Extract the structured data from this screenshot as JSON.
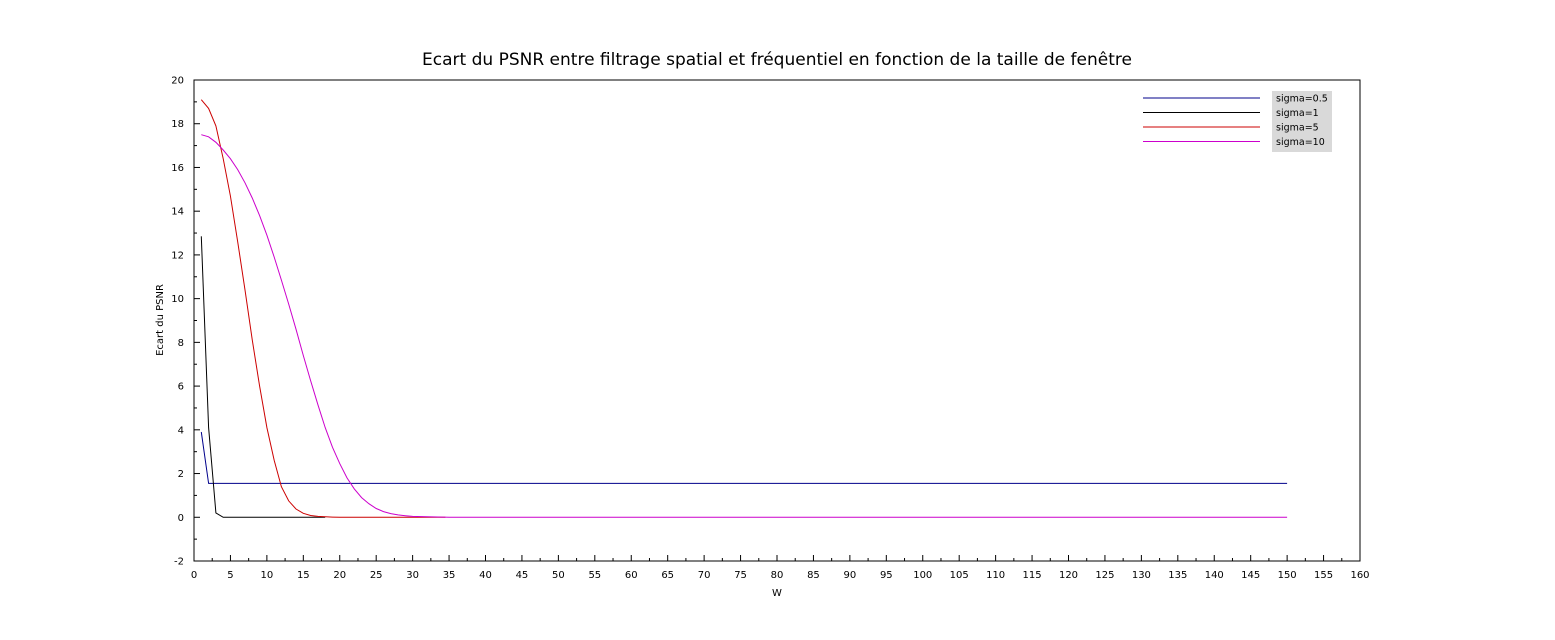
{
  "chart_data": {
    "type": "line",
    "title": "Ecart du PSNR entre filtrage spatial et fréquentiel en fonction de la taille de fenêtre",
    "xlabel": "W",
    "ylabel": "Ecart du PSNR",
    "xlim": [
      0,
      160
    ],
    "ylim": [
      -2,
      20
    ],
    "xticks": [
      0,
      5,
      10,
      15,
      20,
      25,
      30,
      35,
      40,
      45,
      50,
      55,
      60,
      65,
      70,
      75,
      80,
      85,
      90,
      95,
      100,
      105,
      110,
      115,
      120,
      125,
      130,
      135,
      140,
      145,
      150,
      155,
      160
    ],
    "yticks": [
      -2,
      0,
      2,
      4,
      6,
      8,
      10,
      12,
      14,
      16,
      18,
      20
    ],
    "grid": false,
    "legend_position": "top-right",
    "series": [
      {
        "name": "sigma=0.5",
        "color": "#00008b",
        "x": [
          1,
          2,
          3,
          150
        ],
        "y": [
          3.9,
          1.55,
          1.55,
          1.55
        ]
      },
      {
        "name": "sigma=1",
        "color": "#000000",
        "x": [
          1,
          2,
          3,
          4,
          5,
          18
        ],
        "y": [
          12.85,
          4.1,
          0.2,
          0.0,
          0.0,
          0.0
        ]
      },
      {
        "name": "sigma=5",
        "color": "#cc0000",
        "x": [
          1,
          2,
          3,
          4,
          5,
          6,
          7,
          8,
          9,
          10,
          11,
          12,
          13,
          14,
          15,
          16,
          17,
          18,
          19,
          20,
          22,
          25,
          30,
          34.5
        ],
        "y": [
          19.1,
          18.7,
          17.9,
          16.4,
          14.7,
          12.6,
          10.4,
          8.1,
          6.0,
          4.1,
          2.6,
          1.4,
          0.75,
          0.38,
          0.18,
          0.08,
          0.04,
          0.02,
          0.01,
          0.0,
          0.0,
          0.0,
          0.0,
          0.0
        ]
      },
      {
        "name": "sigma=10",
        "color": "#cc00cc",
        "x": [
          1,
          2,
          3,
          4,
          5,
          6,
          7,
          8,
          9,
          10,
          11,
          12,
          13,
          14,
          15,
          16,
          17,
          18,
          19,
          20,
          21,
          22,
          23,
          24,
          25,
          26,
          27,
          28,
          29,
          30,
          32,
          35,
          40,
          50,
          60,
          100,
          150
        ],
        "y": [
          17.5,
          17.4,
          17.15,
          16.8,
          16.4,
          15.9,
          15.3,
          14.6,
          13.8,
          12.9,
          11.9,
          10.85,
          9.75,
          8.6,
          7.4,
          6.25,
          5.15,
          4.1,
          3.2,
          2.45,
          1.8,
          1.3,
          0.9,
          0.62,
          0.4,
          0.26,
          0.17,
          0.11,
          0.07,
          0.04,
          0.02,
          0.0,
          0.0,
          0.0,
          0.0,
          0.0,
          0.0
        ]
      }
    ]
  }
}
